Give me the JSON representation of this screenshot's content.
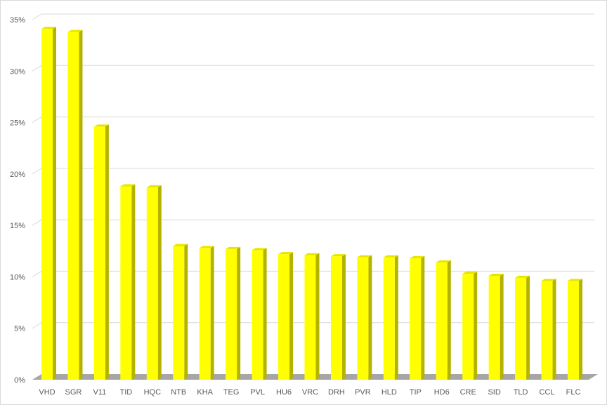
{
  "chart_data": {
    "type": "bar",
    "style": "3d-column",
    "categories": [
      "VHD",
      "SGR",
      "V11",
      "TID",
      "HQC",
      "NTB",
      "KHA",
      "TEG",
      "PVL",
      "HU6",
      "VRC",
      "DRH",
      "PVR",
      "HLD",
      "TIP",
      "HD6",
      "CRE",
      "SID",
      "TLD",
      "CCL",
      "FLC"
    ],
    "values": [
      34.1,
      33.8,
      24.6,
      18.8,
      18.7,
      13.0,
      12.8,
      12.7,
      12.6,
      12.2,
      12.1,
      12.0,
      11.9,
      11.9,
      11.8,
      11.4,
      10.3,
      10.1,
      9.9,
      9.6,
      9.6
    ],
    "ylim": [
      0,
      35
    ],
    "yticks": [
      "0%",
      "5%",
      "10%",
      "15%",
      "20%",
      "25%",
      "30%",
      "35%"
    ],
    "grid": true,
    "legend": "none",
    "colors": {
      "bar": "#ffff00",
      "bar_side": "#b3b300",
      "bar_top": "#e6e600",
      "floor": "#a6a6a6",
      "grid": "#d9d9d9"
    }
  }
}
